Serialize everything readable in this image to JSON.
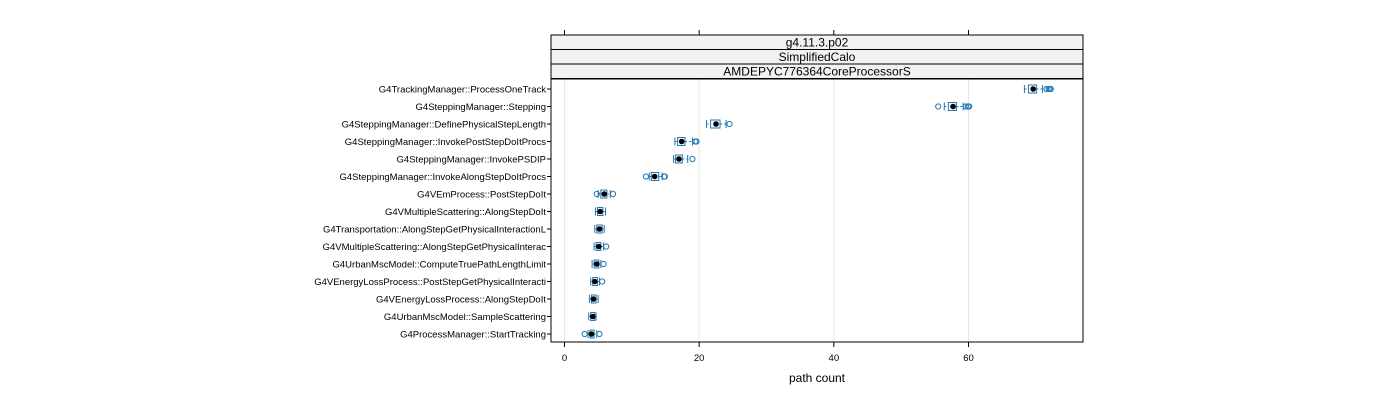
{
  "chart_data": {
    "type": "boxplot",
    "strips": [
      "g4.11.3.p02",
      "SimplifiedCalo",
      "AMDEPYC776364CoreProcessorS"
    ],
    "xlabel": "path count",
    "xlim": [
      -2,
      77
    ],
    "xticks": [
      0,
      20,
      40,
      60
    ],
    "top_ticks": true,
    "grid": "vertical",
    "colors": {
      "box": "#1f77b4",
      "median": "#000000",
      "strip_bg": "#f2f2f2",
      "grid": "#e6e6e6"
    },
    "categories": [
      "G4TrackingManager::ProcessOneTrack",
      "G4SteppingManager::Stepping",
      "G4SteppingManager::DefinePhysicalStepLength",
      "G4SteppingManager::InvokePostStepDoItProcs",
      "G4SteppingManager::InvokePSDIP",
      "G4SteppingManager::InvokeAlongStepDoItProcs",
      "G4VEmProcess::PostStepDoIt",
      "G4VMultipleScattering::AlongStepDoIt",
      "G4Transportation::AlongStepGetPhysicalInteractionL",
      "G4VMultipleScattering::AlongStepGetPhysicalInterac",
      "G4UrbanMscModel::ComputeTruePathLengthLimit",
      "G4VEnergyLossProcess::PostStepGetPhysicalInteracti",
      "G4VEnergyLossProcess::AlongStepDoIt",
      "G4UrbanMscModel::SampleScattering",
      "G4ProcessManager::StartTracking"
    ],
    "boxes": [
      {
        "lw": 68.3,
        "q1": 68.9,
        "med": 69.6,
        "q3": 70.1,
        "uw": 71.0,
        "out": [
          71.6,
          71.9,
          72.1,
          72.2
        ]
      },
      {
        "lw": 56.4,
        "q1": 57.0,
        "med": 57.7,
        "q3": 58.2,
        "uw": 59.2,
        "out": [
          55.5,
          59.6,
          59.9,
          60.1
        ]
      },
      {
        "lw": 21.1,
        "q1": 21.7,
        "med": 22.5,
        "q3": 23.1,
        "uw": 24.0,
        "out": [
          24.5
        ]
      },
      {
        "lw": 16.4,
        "q1": 16.8,
        "med": 17.4,
        "q3": 17.9,
        "uw": 19.0,
        "out": [
          19.4,
          19.6
        ]
      },
      {
        "lw": 16.2,
        "q1": 16.5,
        "med": 17.0,
        "q3": 17.5,
        "uw": 18.3,
        "out": [
          19.0
        ]
      },
      {
        "lw": 12.6,
        "q1": 12.9,
        "med": 13.4,
        "q3": 14.0,
        "uw": 14.5,
        "out": [
          12.1,
          14.8,
          14.9
        ]
      },
      {
        "lw": 5.0,
        "q1": 5.4,
        "med": 5.9,
        "q3": 6.3,
        "uw": 6.8,
        "out": [
          4.8,
          7.2
        ]
      },
      {
        "lw": 4.6,
        "q1": 4.9,
        "med": 5.3,
        "q3": 5.7,
        "uw": 6.1,
        "out": []
      },
      {
        "lw": 4.5,
        "q1": 4.8,
        "med": 5.2,
        "q3": 5.6,
        "uw": 5.9,
        "out": []
      },
      {
        "lw": 4.4,
        "q1": 4.7,
        "med": 5.1,
        "q3": 5.4,
        "uw": 5.8,
        "out": [
          6.2
        ]
      },
      {
        "lw": 4.1,
        "q1": 4.4,
        "med": 4.8,
        "q3": 5.1,
        "uw": 5.4,
        "out": [
          5.8
        ]
      },
      {
        "lw": 3.9,
        "q1": 4.2,
        "med": 4.5,
        "q3": 4.9,
        "uw": 5.2,
        "out": [
          5.6
        ]
      },
      {
        "lw": 3.7,
        "q1": 4.0,
        "med": 4.3,
        "q3": 4.7,
        "uw": 5.0,
        "out": []
      },
      {
        "lw": 3.6,
        "q1": 3.9,
        "med": 4.2,
        "q3": 4.5,
        "uw": 4.7,
        "out": []
      },
      {
        "lw": 3.5,
        "q1": 3.8,
        "med": 4.0,
        "q3": 4.4,
        "uw": 4.8,
        "out": [
          3.0,
          5.2
        ]
      }
    ]
  }
}
